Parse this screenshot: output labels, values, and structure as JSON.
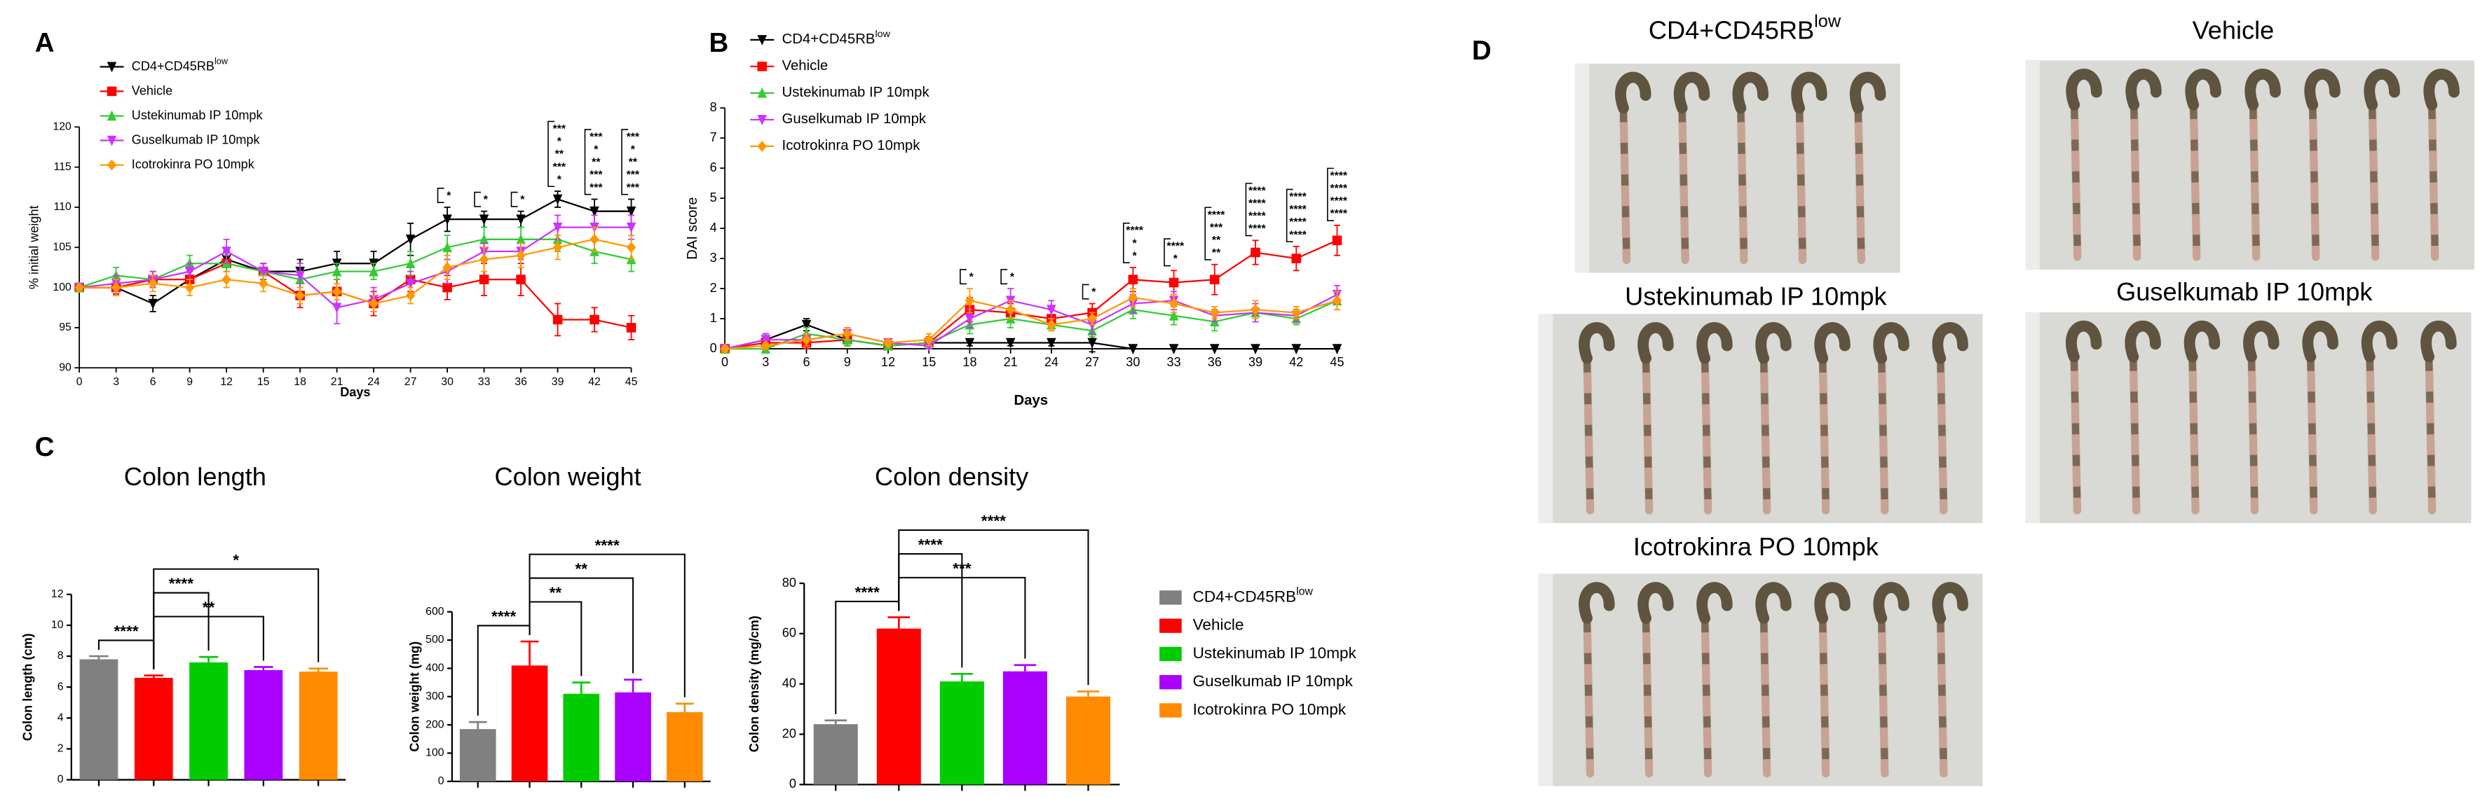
{
  "panel_labels": [
    "A",
    "B",
    "C",
    "D"
  ],
  "chart_data": [
    {
      "type": "line",
      "ylabel": "% initial weight",
      "xlabel": "Days",
      "x": [
        0,
        3,
        6,
        9,
        12,
        15,
        18,
        21,
        24,
        27,
        30,
        33,
        36,
        39,
        42,
        45
      ],
      "xlim": [
        0,
        45
      ],
      "xticks": [
        0,
        3,
        6,
        9,
        12,
        15,
        18,
        21,
        24,
        27,
        30,
        33,
        36,
        39,
        42,
        45
      ],
      "ylim": [
        90,
        120
      ],
      "yticks": [
        90,
        95,
        100,
        105,
        110,
        115,
        120
      ],
      "series": [
        {
          "name": "CD4+CD45RB",
          "name_sup": "low",
          "color": "#000000",
          "marker": "triangle-down",
          "values": [
            100,
            100,
            98,
            101,
            103.5,
            102,
            102,
            103,
            103,
            106,
            108.5,
            108.5,
            108.5,
            111,
            109.5,
            109.5
          ],
          "errors": [
            0,
            0.8,
            1,
            1,
            1,
            1,
            1.5,
            1.5,
            1.5,
            2,
            1.5,
            1,
            1,
            1,
            1.5,
            1.5
          ]
        },
        {
          "name": "Vehicle",
          "color": "#ff0000",
          "marker": "square",
          "values": [
            100,
            100,
            101,
            101,
            103,
            102,
            99,
            99.5,
            98,
            101,
            100,
            101,
            101,
            96,
            96,
            95
          ],
          "errors": [
            0,
            0.8,
            1,
            1,
            1,
            1,
            1.5,
            1.5,
            1.5,
            1.5,
            1.5,
            2,
            2,
            2,
            1.5,
            1.5
          ]
        },
        {
          "name": "Ustekinumab IP 10mpk",
          "color": "#33cc33",
          "marker": "triangle-up",
          "values": [
            100,
            101.5,
            101,
            103,
            103,
            102,
            101,
            102,
            102,
            103,
            105,
            106,
            106,
            106,
            104.5,
            103.5
          ],
          "errors": [
            0,
            1,
            1,
            1,
            1,
            1,
            1,
            1,
            1,
            1.5,
            1.5,
            1.5,
            1.5,
            1.5,
            1.5,
            1.5
          ]
        },
        {
          "name": "Guselkumab IP 10mpk",
          "color": "#cc33ff",
          "marker": "triangle-down",
          "values": [
            100,
            100.5,
            101,
            102,
            104.5,
            102,
            101.5,
            97.5,
            98.5,
            100.5,
            102,
            104.5,
            104.5,
            107.5,
            107.5,
            107.5
          ],
          "errors": [
            0,
            1,
            1,
            1,
            1.5,
            1,
            1.5,
            2,
            1.5,
            1.5,
            1.5,
            1,
            1,
            1.5,
            1.5,
            1.5
          ]
        },
        {
          "name": "Icotrokinra PO 10mpk",
          "color": "#ff9900",
          "marker": "diamond",
          "values": [
            100,
            100,
            100.5,
            100,
            101,
            100.5,
            99,
            99.5,
            98,
            99,
            102.5,
            103.5,
            104,
            105,
            106,
            105
          ],
          "errors": [
            0,
            1,
            1,
            1,
            1,
            1,
            1,
            1,
            1,
            1,
            1.5,
            1.5,
            1.5,
            1.5,
            1.5,
            1.5
          ]
        }
      ],
      "annotations": [
        {
          "x": 30,
          "labels": [
            {
              "text": "*",
              "color": "#000000"
            }
          ]
        },
        {
          "x": 33,
          "labels": [
            {
              "text": "*",
              "color": "#000000"
            }
          ]
        },
        {
          "x": 36,
          "labels": [
            {
              "text": "*",
              "color": "#000000"
            }
          ]
        },
        {
          "x": 39,
          "labels": [
            {
              "text": "***",
              "color": "#000000"
            },
            {
              "text": "*",
              "color": "#000000"
            },
            {
              "text": "**",
              "color": "#33cc33"
            },
            {
              "text": "***",
              "color": "#cc33ff"
            },
            {
              "text": "*",
              "color": "#ff9900"
            }
          ]
        },
        {
          "x": 42,
          "labels": [
            {
              "text": "***",
              "color": "#000000"
            },
            {
              "text": "*",
              "color": "#000000"
            },
            {
              "text": "**",
              "color": "#33cc33"
            },
            {
              "text": "***",
              "color": "#cc33ff"
            },
            {
              "text": "***",
              "color": "#ff9900"
            }
          ]
        },
        {
          "x": 45,
          "labels": [
            {
              "text": "***",
              "color": "#000000"
            },
            {
              "text": "*",
              "color": "#000000"
            },
            {
              "text": "**",
              "color": "#33cc33"
            },
            {
              "text": "***",
              "color": "#cc33ff"
            },
            {
              "text": "***",
              "color": "#ff9900"
            }
          ]
        }
      ]
    },
    {
      "type": "line",
      "ylabel": "DAI score",
      "xlabel": "Days",
      "x": [
        0,
        3,
        6,
        9,
        12,
        15,
        18,
        21,
        24,
        27,
        30,
        33,
        36,
        39,
        42,
        45
      ],
      "xlim": [
        0,
        45
      ],
      "xticks": [
        0,
        3,
        6,
        9,
        12,
        15,
        18,
        21,
        24,
        27,
        30,
        33,
        36,
        39,
        42,
        45
      ],
      "ylim": [
        0,
        8
      ],
      "yticks": [
        0,
        1,
        2,
        3,
        4,
        5,
        6,
        7,
        8
      ],
      "series": [
        {
          "name": "CD4+CD45RB",
          "name_sup": "low",
          "color": "#000000",
          "marker": "triangle-down",
          "values": [
            0,
            0.3,
            0.8,
            0.3,
            0.1,
            0.2,
            0.2,
            0.2,
            0.2,
            0.2,
            0,
            0,
            0,
            0,
            0,
            0
          ],
          "errors": [
            0,
            0.2,
            0.2,
            0.2,
            0.1,
            0.1,
            0.1,
            0.1,
            0.1,
            0.3,
            0,
            0,
            0,
            0,
            0,
            0
          ]
        },
        {
          "name": "Vehicle",
          "color": "#ff0000",
          "marker": "square",
          "values": [
            0,
            0.2,
            0.2,
            0.3,
            0.1,
            0.2,
            1.3,
            1.2,
            1,
            1.2,
            2.3,
            2.2,
            2.3,
            3.2,
            3,
            3.6
          ],
          "errors": [
            0,
            0.1,
            0.2,
            0.2,
            0.1,
            0.2,
            0.4,
            0.3,
            0.3,
            0.3,
            0.4,
            0.4,
            0.5,
            0.4,
            0.4,
            0.5
          ]
        },
        {
          "name": "Ustekinumab IP 10mpk",
          "color": "#33cc33",
          "marker": "triangle-up",
          "values": [
            0,
            0,
            0.5,
            0.3,
            0.1,
            0.2,
            0.8,
            1,
            0.8,
            0.6,
            1.3,
            1.1,
            0.9,
            1.2,
            1,
            1.6
          ],
          "errors": [
            0,
            0.1,
            0.2,
            0.2,
            0.1,
            0.1,
            0.3,
            0.3,
            0.2,
            0.2,
            0.3,
            0.3,
            0.3,
            0.3,
            0.2,
            0.3
          ]
        },
        {
          "name": "Guselkumab IP 10mpk",
          "color": "#cc33ff",
          "marker": "triangle-down",
          "values": [
            0,
            0.3,
            0.3,
            0.5,
            0.2,
            0.1,
            1,
            1.6,
            1.3,
            0.8,
            1.5,
            1.6,
            1.1,
            1.2,
            1.1,
            1.8
          ],
          "errors": [
            0,
            0.2,
            0.2,
            0.2,
            0.1,
            0.1,
            0.3,
            0.4,
            0.3,
            0.3,
            0.3,
            0.3,
            0.2,
            0.3,
            0.2,
            0.3
          ]
        },
        {
          "name": "Icotrokinra PO 10mpk",
          "color": "#ff9900",
          "marker": "diamond",
          "values": [
            0,
            0.1,
            0.3,
            0.5,
            0.2,
            0.3,
            1.6,
            1.3,
            0.8,
            1,
            1.7,
            1.5,
            1.2,
            1.3,
            1.2,
            1.6
          ],
          "errors": [
            0,
            0.1,
            0.2,
            0.2,
            0.1,
            0.2,
            0.4,
            0.3,
            0.2,
            0.2,
            0.3,
            0.3,
            0.2,
            0.3,
            0.2,
            0.3
          ]
        }
      ],
      "annotations": [
        {
          "x": 18,
          "labels": [
            {
              "text": "*",
              "color": "#000000"
            }
          ]
        },
        {
          "x": 21,
          "labels": [
            {
              "text": "*",
              "color": "#000000"
            }
          ]
        },
        {
          "x": 27,
          "labels": [
            {
              "text": "*",
              "color": "#000000"
            }
          ]
        },
        {
          "x": 30,
          "labels": [
            {
              "text": "****",
              "color": "#000000"
            },
            {
              "text": "*",
              "color": "#33cc33"
            },
            {
              "text": "*",
              "color": "#cc33ff"
            }
          ]
        },
        {
          "x": 33,
          "labels": [
            {
              "text": "****",
              "color": "#000000"
            },
            {
              "text": "*",
              "color": "#33cc33"
            }
          ]
        },
        {
          "x": 36,
          "labels": [
            {
              "text": "****",
              "color": "#000000"
            },
            {
              "text": "***",
              "color": "#33cc33"
            },
            {
              "text": "**",
              "color": "#cc33ff"
            },
            {
              "text": "**",
              "color": "#ff9900"
            }
          ]
        },
        {
          "x": 39,
          "labels": [
            {
              "text": "****",
              "color": "#000000"
            },
            {
              "text": "****",
              "color": "#33cc33"
            },
            {
              "text": "****",
              "color": "#cc33ff"
            },
            {
              "text": "****",
              "color": "#ff9900"
            }
          ]
        },
        {
          "x": 42,
          "labels": [
            {
              "text": "****",
              "color": "#000000"
            },
            {
              "text": "****",
              "color": "#33cc33"
            },
            {
              "text": "****",
              "color": "#cc33ff"
            },
            {
              "text": "****",
              "color": "#ff9900"
            }
          ]
        },
        {
          "x": 45,
          "labels": [
            {
              "text": "****",
              "color": "#000000"
            },
            {
              "text": "****",
              "color": "#33cc33"
            },
            {
              "text": "****",
              "color": "#cc33ff"
            },
            {
              "text": "****",
              "color": "#ff9900"
            }
          ]
        }
      ]
    },
    {
      "type": "bar",
      "title": "Colon length",
      "ylabel": "Colon length (cm)",
      "categories": [
        null,
        null,
        null,
        null,
        null
      ],
      "values": [
        7.8,
        6.6,
        7.6,
        7.1,
        7.0
      ],
      "errors": [
        0.2,
        0.15,
        0.35,
        0.2,
        0.2
      ],
      "colors": [
        "#808080",
        "#ff0000",
        "#00cc00",
        "#aa00ff",
        "#ff8c00"
      ],
      "ylim": [
        0,
        12
      ],
      "yticks": [
        0,
        2,
        4,
        6,
        8,
        10,
        12
      ],
      "comparisons": [
        {
          "pair": [
            0,
            1
          ],
          "label": "****"
        },
        {
          "pair": [
            1,
            3
          ],
          "label": "**"
        },
        {
          "pair": [
            1,
            2
          ],
          "label": "****"
        },
        {
          "pair": [
            1,
            4
          ],
          "label": "*"
        }
      ]
    },
    {
      "type": "bar",
      "title": "Colon weight",
      "ylabel": "Colon weight (mg)",
      "categories": [
        null,
        null,
        null,
        null,
        null
      ],
      "values": [
        185,
        410,
        310,
        315,
        245
      ],
      "errors": [
        25,
        85,
        40,
        45,
        30
      ],
      "colors": [
        "#808080",
        "#ff0000",
        "#00cc00",
        "#aa00ff",
        "#ff8c00"
      ],
      "ylim": [
        0,
        600
      ],
      "yticks": [
        0,
        100,
        200,
        300,
        400,
        500,
        600
      ],
      "comparisons": [
        {
          "pair": [
            0,
            1
          ],
          "label": "****"
        },
        {
          "pair": [
            1,
            2
          ],
          "label": "**"
        },
        {
          "pair": [
            1,
            3
          ],
          "label": "**"
        },
        {
          "pair": [
            1,
            4
          ],
          "label": "****"
        }
      ]
    },
    {
      "type": "bar",
      "title": "Colon density",
      "ylabel": "Colon density (mg/cm)",
      "categories": [
        null,
        null,
        null,
        null,
        null
      ],
      "values": [
        24,
        62,
        41,
        45,
        35
      ],
      "errors": [
        1.5,
        4.5,
        3,
        2.5,
        2
      ],
      "colors": [
        "#808080",
        "#ff0000",
        "#00cc00",
        "#aa00ff",
        "#ff8c00"
      ],
      "ylim": [
        0,
        80
      ],
      "yticks": [
        0,
        20,
        40,
        60,
        80
      ],
      "comparisons": [
        {
          "pair": [
            0,
            1
          ],
          "label": "****"
        },
        {
          "pair": [
            1,
            3
          ],
          "label": "***"
        },
        {
          "pair": [
            1,
            2
          ],
          "label": "****"
        },
        {
          "pair": [
            1,
            4
          ],
          "label": "****"
        }
      ]
    }
  ],
  "group_legend": {
    "entries": [
      {
        "name": "CD4+CD45RB",
        "name_sup": "low",
        "color": "#808080"
      },
      {
        "name": "Vehicle",
        "color": "#ff0000"
      },
      {
        "name": "Ustekinumab IP 10mpk",
        "color": "#00cc00"
      },
      {
        "name": "Guselkumab IP 10mpk",
        "color": "#aa00ff"
      },
      {
        "name": "Icotrokinra PO 10mpk",
        "color": "#ff8c00"
      }
    ]
  },
  "photos": [
    {
      "name": "CD4+CD45RB",
      "name_sup": "low"
    },
    {
      "name": "Vehicle"
    },
    {
      "name": "Ustekinumab IP 10mpk"
    },
    {
      "name": "Guselkumab IP 10mpk"
    },
    {
      "name": "Icotrokinra PO 10mpk"
    }
  ]
}
